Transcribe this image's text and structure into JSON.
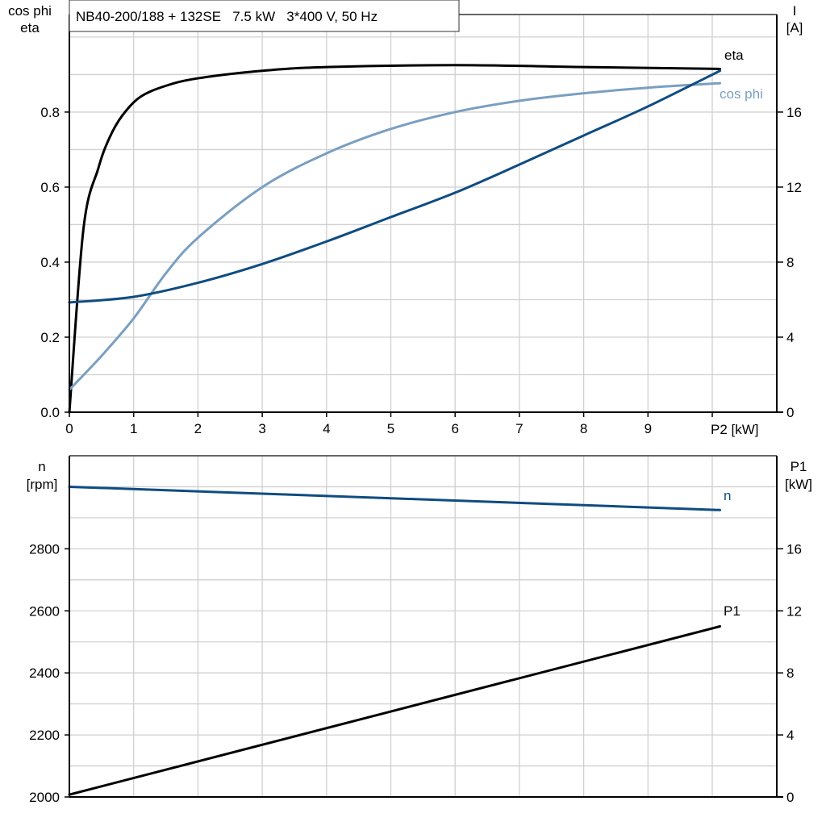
{
  "chart_data": [
    {
      "type": "line",
      "title": "NB40-200/188 + 132SE   7.5 kW   3*400 V, 50 Hz",
      "xlabel": "P2 [kW]",
      "ylabel_left": [
        "cos phi",
        "eta"
      ],
      "ylabel_right": [
        "I",
        "[A]"
      ],
      "xlim": [
        0,
        11
      ],
      "ylim_left": [
        0,
        1.06
      ],
      "ylim_right": [
        0,
        21.2
      ],
      "x_ticks": [
        "0",
        "1",
        "2",
        "3",
        "4",
        "5",
        "6",
        "7",
        "8",
        "9"
      ],
      "y_ticks_left": [
        "0.0",
        "0.2",
        "0.4",
        "0.6",
        "0.8"
      ],
      "y_ticks_right": [
        "0",
        "4",
        "8",
        "12",
        "16"
      ],
      "grid": true,
      "series": [
        {
          "name": "eta",
          "axis": "left",
          "color": "#000000",
          "x": [
            0,
            0.22,
            0.45,
            0.62,
            0.82,
            1.1,
            1.5,
            2,
            3,
            4,
            6,
            8,
            10.12
          ],
          "y": [
            0,
            0.49,
            0.65,
            0.73,
            0.79,
            0.84,
            0.87,
            0.89,
            0.91,
            0.92,
            0.925,
            0.92,
            0.915
          ]
        },
        {
          "name": "cos phi",
          "axis": "left",
          "color": "#7a9fc0",
          "x": [
            0,
            0.5,
            1,
            1.5,
            2,
            3,
            4,
            5,
            6,
            7,
            8,
            9,
            10.12
          ],
          "y": [
            0.06,
            0.15,
            0.25,
            0.37,
            0.465,
            0.6,
            0.69,
            0.755,
            0.8,
            0.83,
            0.85,
            0.865,
            0.877
          ]
        },
        {
          "name": "",
          "axis": "right",
          "color": "#0f4c81",
          "x": [
            0,
            1,
            2,
            3,
            4,
            5,
            6,
            7,
            8,
            9,
            10.12
          ],
          "y": [
            5.85,
            6.15,
            6.9,
            7.9,
            9.1,
            10.4,
            11.7,
            13.2,
            14.75,
            16.3,
            18.2
          ]
        }
      ]
    },
    {
      "type": "line",
      "ylabel_left": [
        "n",
        "[rpm]"
      ],
      "ylabel_right": [
        "P1",
        "[kW]"
      ],
      "xlim": [
        0,
        11
      ],
      "ylim_left": [
        2000,
        3100
      ],
      "ylim_right": [
        0,
        22
      ],
      "y_ticks_left": [
        "2000",
        "2200",
        "2400",
        "2600",
        "2800"
      ],
      "y_ticks_right": [
        "0",
        "4",
        "8",
        "12",
        "16"
      ],
      "grid": true,
      "series": [
        {
          "name": "n",
          "axis": "left",
          "color": "#0f4c81",
          "x": [
            0,
            10.12
          ],
          "y": [
            3000,
            2925
          ]
        },
        {
          "name": "P1",
          "axis": "right",
          "color": "#000000",
          "x": [
            0,
            10.12
          ],
          "y": [
            0.15,
            11.0
          ]
        }
      ]
    }
  ]
}
